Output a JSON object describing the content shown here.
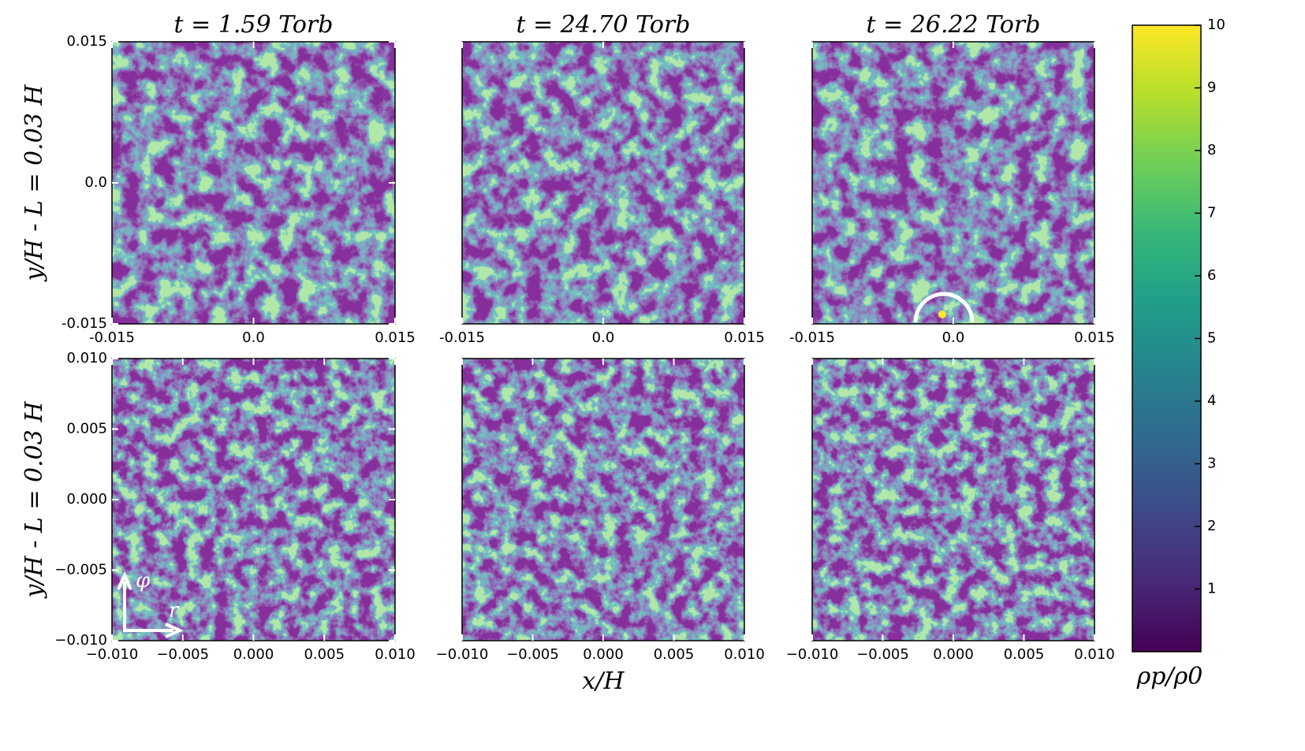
{
  "chart_data": [
    {
      "type": "heatmap",
      "title": "t = 1.59 Torb",
      "ylabel": "y/H - L = 0.03 H",
      "xlim": [
        -0.015,
        0.015
      ],
      "xticks": [
        -0.015,
        {
          "value": 0,
          "label": "0.0"
        },
        0.015
      ],
      "ylim": [
        -0.015,
        0.015
      ],
      "yticks": [
        -0.015,
        {
          "value": 0,
          "label": "0.0"
        },
        0.015
      ]
    },
    {
      "type": "heatmap",
      "title": "t = 24.70 Torb",
      "xlim": [
        -0.015,
        0.015
      ],
      "xticks": [
        -0.015,
        {
          "value": 0,
          "label": "0.0"
        },
        0.015
      ],
      "ylim": [
        -0.015,
        0.015
      ]
    },
    {
      "type": "heatmap",
      "title": "t = 26.22 Torb",
      "xlim": [
        -0.015,
        0.015
      ],
      "xticks": [
        -0.015,
        {
          "value": 0,
          "label": "0.0"
        },
        0.015
      ],
      "ylim": [
        -0.015,
        0.015
      ]
    },
    {
      "type": "heatmap",
      "ylabel": "y/H - L = 0.03 H",
      "annotations": [
        "φ",
        "r"
      ],
      "xlim": [
        -0.01,
        0.01
      ],
      "xticks": [
        {
          "value": -0.01,
          "label": "−0.010"
        },
        {
          "value": -0.005,
          "label": "−0.005"
        },
        {
          "value": 0,
          "label": "0.000"
        },
        0.005,
        {
          "value": 0.01,
          "label": "0.010"
        }
      ],
      "ylim": [
        -0.01,
        0.01
      ],
      "yticks": [
        {
          "value": -0.01,
          "label": "−0.010"
        },
        {
          "value": -0.005,
          "label": "−0.005"
        },
        {
          "value": 0,
          "label": "0.000"
        },
        0.005,
        {
          "value": 0.01,
          "label": "0.010"
        }
      ]
    },
    {
      "type": "heatmap",
      "xlabel": "x/H",
      "xlim": [
        -0.01,
        0.01
      ],
      "xticks": [
        {
          "value": -0.01,
          "label": "−0.010"
        },
        {
          "value": -0.005,
          "label": "−0.005"
        },
        {
          "value": 0,
          "label": "0.000"
        },
        0.005,
        {
          "value": 0.01,
          "label": "0.010"
        }
      ],
      "ylim": [
        -0.01,
        0.01
      ]
    },
    {
      "type": "heatmap",
      "xlim": [
        -0.01,
        0.01
      ],
      "xticks": [
        {
          "value": -0.01,
          "label": "−0.010"
        },
        {
          "value": -0.005,
          "label": "−0.005"
        },
        {
          "value": 0,
          "label": "0.000"
        },
        0.005,
        {
          "value": 0.01,
          "label": "0.010"
        }
      ],
      "ylim": [
        -0.01,
        0.01
      ]
    }
  ],
  "colorbar": {
    "label": "ρp/ρ0",
    "lim": [
      0,
      10
    ],
    "ticks": [
      1,
      2,
      3,
      4,
      5,
      6,
      7,
      8,
      9,
      10
    ],
    "colors": [
      "#440154",
      "#482878",
      "#3e4989",
      "#31688e",
      "#26828e",
      "#1f9e89",
      "#35b779",
      "#6ece58",
      "#b5de2b",
      "#fde725"
    ]
  }
}
